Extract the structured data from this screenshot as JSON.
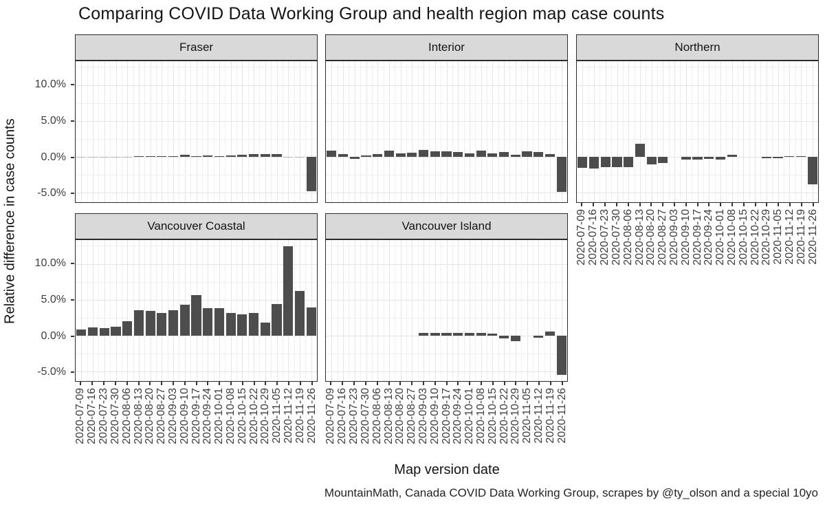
{
  "chart_data": {
    "type": "bar",
    "title": "Comparing COVID Data Working Group and health region map case counts",
    "xlabel": "Map version date",
    "ylabel": "Relative difference in case counts",
    "caption": "MountainMath, Canada COVID Data Working Group, scrapes by @ty_olson and a special 10yo",
    "unit": "percent",
    "legend": "none",
    "grid": "major+minor",
    "x": [
      "2020-07-09",
      "2020-07-16",
      "2020-07-23",
      "2020-07-30",
      "2020-08-06",
      "2020-08-13",
      "2020-08-20",
      "2020-08-27",
      "2020-09-03",
      "2020-09-10",
      "2020-09-17",
      "2020-09-24",
      "2020-10-01",
      "2020-10-08",
      "2020-10-15",
      "2020-10-22",
      "2020-10-29",
      "2020-11-05",
      "2020-11-12",
      "2020-11-19",
      "2020-11-26"
    ],
    "ylim": [
      -6.3,
      13.3
    ],
    "y_ticks": [
      {
        "value": 10.0,
        "label": "10.0%"
      },
      {
        "value": 5.0,
        "label": "5.0%"
      },
      {
        "value": 0.0,
        "label": "0.0%"
      },
      {
        "value": -5.0,
        "label": "-5.0%"
      }
    ],
    "y_minor_ticks": [
      -2.5,
      2.5,
      7.5,
      12.5
    ],
    "facets": [
      {
        "name": "Fraser",
        "values": [
          0.05,
          0.05,
          0.05,
          0.05,
          0.05,
          0.1,
          0.1,
          0.1,
          0.1,
          0.3,
          0.15,
          0.25,
          0.1,
          0.2,
          0.3,
          0.35,
          0.35,
          0.4,
          0.05,
          0.05,
          -4.8
        ]
      },
      {
        "name": "Interior",
        "values": [
          0.9,
          0.4,
          -0.3,
          0.2,
          0.4,
          0.9,
          0.45,
          0.6,
          1.0,
          0.8,
          0.75,
          0.7,
          0.5,
          0.85,
          0.45,
          0.7,
          0.3,
          0.8,
          0.65,
          0.35,
          -4.9
        ]
      },
      {
        "name": "Northern",
        "values": [
          -1.5,
          -1.6,
          -1.4,
          -1.4,
          -1.4,
          1.8,
          -1.0,
          -0.9,
          null,
          -0.4,
          -0.4,
          -0.3,
          -0.35,
          0.3,
          null,
          null,
          -0.2,
          -0.15,
          0.15,
          0.15,
          -3.8
        ]
      },
      {
        "name": "Vancouver Coastal",
        "values": [
          0.9,
          1.2,
          1.1,
          1.3,
          2.0,
          3.6,
          3.5,
          3.2,
          3.6,
          4.3,
          5.7,
          3.8,
          3.8,
          3.2,
          3.0,
          3.2,
          1.8,
          4.4,
          12.4,
          6.2,
          3.9
        ]
      },
      {
        "name": "Vancouver Island",
        "values": [
          null,
          null,
          null,
          null,
          null,
          null,
          null,
          null,
          0.4,
          0.4,
          0.4,
          0.35,
          0.35,
          0.4,
          0.3,
          -0.4,
          -0.75,
          null,
          -0.3,
          0.6,
          -5.4
        ]
      }
    ],
    "colors": {
      "bar": "#4d4d4d",
      "bar_tiny": "#b3b3b3",
      "strip_background": "#d9d9d9",
      "panel_border": "#2b2b2b",
      "grid_major": "#e4e4e4",
      "grid_minor": "#f0f0f0",
      "axis_text": "#3d3d3d"
    }
  }
}
